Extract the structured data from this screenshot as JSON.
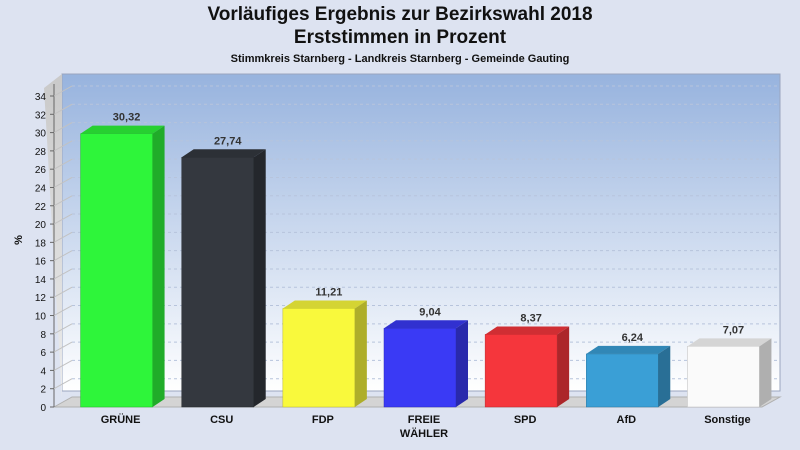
{
  "chart_data": {
    "type": "bar",
    "title": "Vorläufiges Ergebnis zur Bezirkswahl 2018",
    "subtitle": "Erststimmen in Prozent",
    "subtitle2": "Stimmkreis Starnberg - Landkreis Starnberg - Gemeinde Gauting",
    "ylabel": "%",
    "ylim": [
      0,
      34
    ],
    "ytick_step": 2,
    "grid": true,
    "categories": [
      "GRÜNE",
      "CSU",
      "FDP",
      "FREIE WÄHLER",
      "SPD",
      "AfD",
      "Sonstige"
    ],
    "category_lines": [
      [
        "GRÜNE"
      ],
      [
        "CSU"
      ],
      [
        "FDP"
      ],
      [
        "FREIE",
        "WÄHLER"
      ],
      [
        "SPD"
      ],
      [
        "AfD"
      ],
      [
        "Sonstige"
      ]
    ],
    "values": [
      30.32,
      27.74,
      11.21,
      9.04,
      8.37,
      6.24,
      7.07
    ],
    "value_labels": [
      "30,32",
      "27,74",
      "11,21",
      "9,04",
      "8,37",
      "6,24",
      "7,07"
    ],
    "colors": [
      "#2ef53a",
      "#34383f",
      "#f9f93c",
      "#3a3af5",
      "#f5363c",
      "#3a9fd6",
      "#fafafa"
    ]
  }
}
